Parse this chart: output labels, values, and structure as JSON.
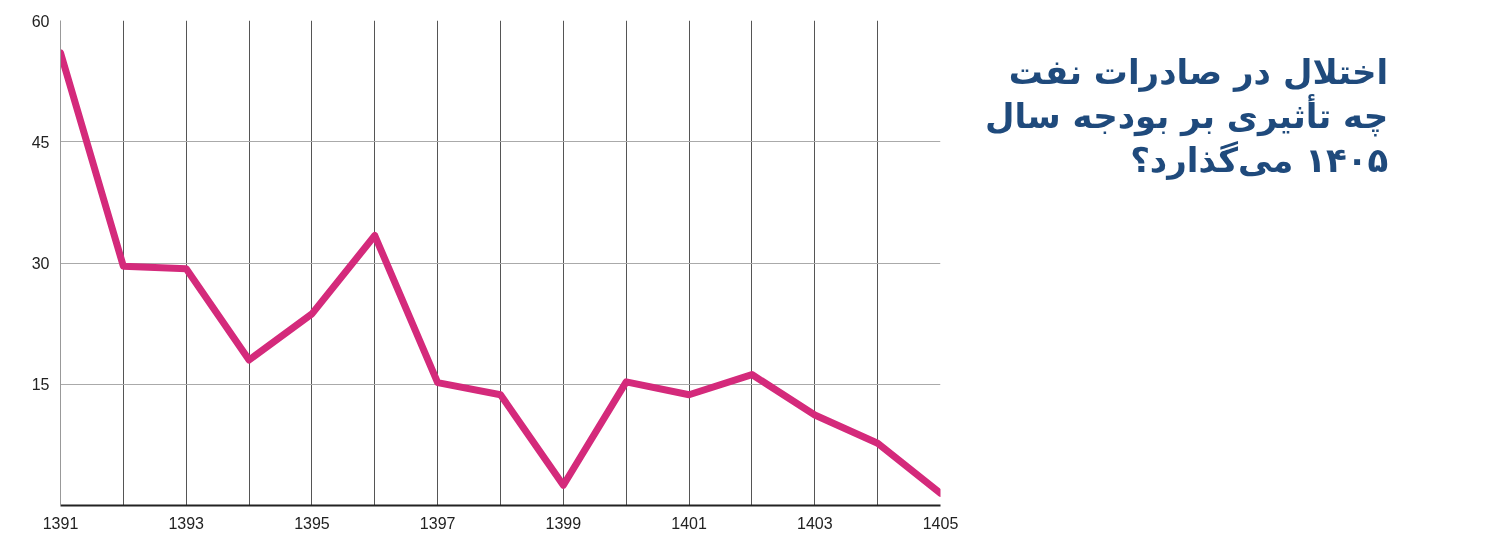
{
  "chart_data": {
    "type": "line",
    "title": "اختلال در صادرات نفت\nچه تأثیری بر بودجه سال\n۱۴۰۵ می‌گذارد؟",
    "x": [
      1391,
      1392,
      1393,
      1394,
      1395,
      1396,
      1397,
      1398,
      1399,
      1400,
      1401,
      1402,
      1403,
      1404,
      1405
    ],
    "series": [
      {
        "color": "#d42a7b",
        "values": [
          56,
          29.6,
          29.3,
          18,
          23.7,
          33.4,
          15.2,
          13.7,
          2.5,
          15.3,
          13.7,
          16.2,
          11.2,
          7.7,
          1.5
        ]
      }
    ],
    "xlim": [
      1391,
      1405
    ],
    "xticks": [
      1391,
      {
        "value": 1392,
        "label": null
      },
      1393,
      {
        "value": 1394,
        "label": null
      },
      1395,
      {
        "value": 1396,
        "label": null
      },
      1397,
      {
        "value": 1398,
        "label": null
      },
      1399,
      {
        "value": 1400,
        "label": null
      },
      1401,
      {
        "value": 1402,
        "label": null
      },
      1403,
      {
        "value": 1404,
        "label": null
      },
      1405
    ],
    "ylim": [
      0,
      60
    ],
    "yticks": [
      15,
      30,
      45,
      60
    ],
    "grid": true,
    "marker": "none",
    "line_style": "solid"
  }
}
